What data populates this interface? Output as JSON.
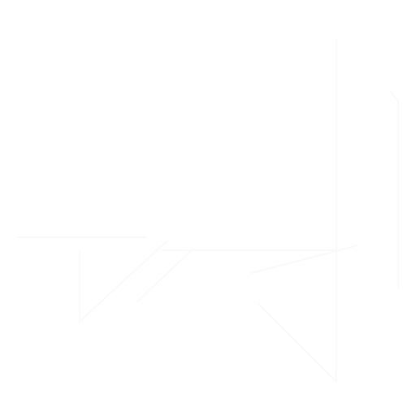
{
  "icon": {
    "name": "interaction-sketch-icon",
    "stroke_color": "#e9f0f3",
    "background_color": "#ffffff"
  }
}
